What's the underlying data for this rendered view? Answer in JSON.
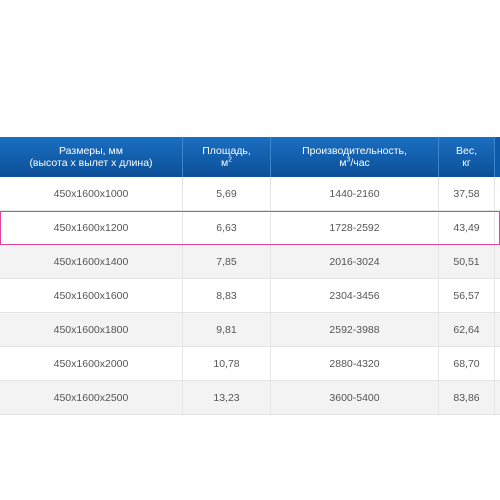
{
  "table": {
    "header": {
      "col1_line1": "Размеры, мм",
      "col1_line2": "(высота х вылет х длина)",
      "col2_line1": "Площадь,",
      "col2_unit": "м",
      "col2_sup": "2",
      "col3_line1": "Производительность,",
      "col3_unit_pre": "м",
      "col3_sup": "3",
      "col3_unit_post": "/час",
      "col4_line1": "Вес,",
      "col4_line2": "кг"
    },
    "rows": [
      {
        "size": "450x1600x1000",
        "area": "5,69",
        "perf": "1440-2160",
        "weight": "37,58"
      },
      {
        "size": "450x1600x1200",
        "area": "6,63",
        "perf": "1728-2592",
        "weight": "43,49"
      },
      {
        "size": "450x1600x1400",
        "area": "7,85",
        "perf": "2016-3024",
        "weight": "50,51"
      },
      {
        "size": "450x1600x1600",
        "area": "8,83",
        "perf": "2304-3456",
        "weight": "56,57"
      },
      {
        "size": "450x1600x1800",
        "area": "9,81",
        "perf": "2592-3988",
        "weight": "62,64"
      },
      {
        "size": "450x1600x2000",
        "area": "10,78",
        "perf": "2880-4320",
        "weight": "68,70"
      },
      {
        "size": "450x1600x2500",
        "area": "13,23",
        "perf": "3600-5400",
        "weight": "83,86"
      }
    ]
  }
}
